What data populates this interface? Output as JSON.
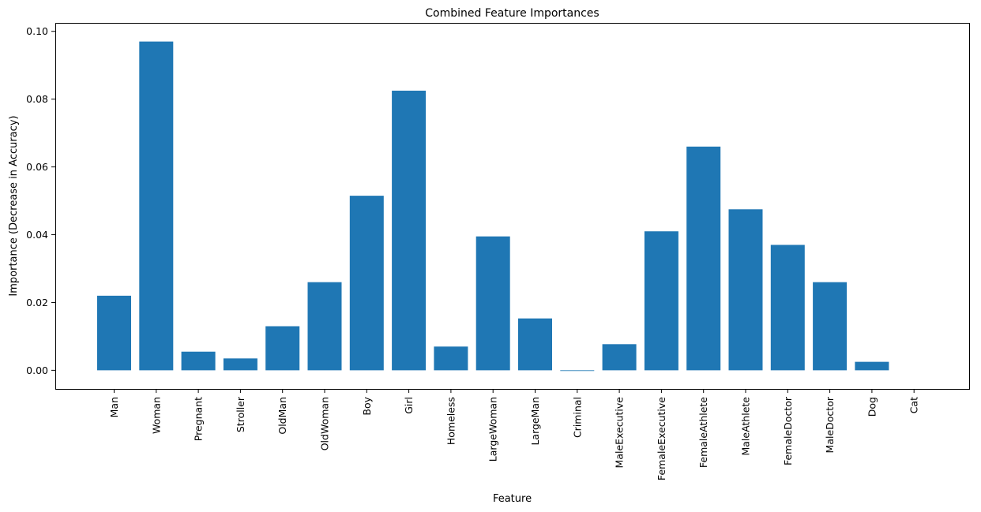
{
  "chart_data": {
    "type": "bar",
    "title": "Combined Feature Importances",
    "xlabel": "Feature",
    "ylabel": "Importance (Decrease in Accuracy)",
    "categories": [
      "Man",
      "Woman",
      "Pregnant",
      "Stroller",
      "OldMan",
      "OldWoman",
      "Boy",
      "Girl",
      "Homeless",
      "LargeWoman",
      "LargeMan",
      "Criminal",
      "MaleExecutive",
      "FemaleExecutive",
      "FemaleAthlete",
      "MaleAthlete",
      "FemaleDoctor",
      "MaleDoctor",
      "Dog",
      "Cat"
    ],
    "values": [
      0.022,
      0.097,
      0.0055,
      0.0035,
      0.013,
      0.026,
      0.0515,
      0.0825,
      0.007,
      0.0395,
      0.0153,
      -0.0002,
      0.0077,
      0.041,
      0.066,
      0.0475,
      0.037,
      0.026,
      0.0025,
      0.0
    ],
    "ylim": [
      -0.0055,
      0.1025
    ],
    "yticks": [
      "0.00",
      "0.02",
      "0.04",
      "0.06",
      "0.08",
      "0.10"
    ],
    "ytick_values": [
      0.0,
      0.02,
      0.04,
      0.06,
      0.08,
      0.1
    ],
    "bar_color": "#1f77b4",
    "grid": false,
    "legend": "none"
  }
}
